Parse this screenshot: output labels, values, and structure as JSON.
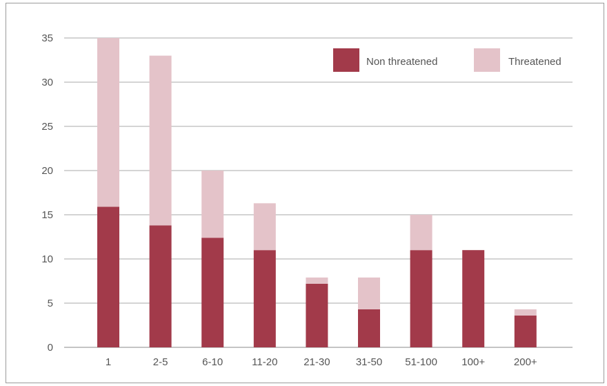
{
  "chart_data": {
    "type": "bar",
    "stacked": true,
    "categories": [
      "1",
      "2-5",
      "6-10",
      "11-20",
      "21-30",
      "31-50",
      "51-100",
      "100+",
      "200+"
    ],
    "series": [
      {
        "name": "Non threatened",
        "values": [
          15.9,
          13.8,
          12.4,
          11.0,
          7.2,
          4.3,
          11.0,
          11.0,
          3.6
        ],
        "color": "#a23a4a"
      },
      {
        "name": "Threatened",
        "values": [
          19.1,
          19.2,
          7.6,
          5.3,
          0.7,
          3.6,
          4.0,
          0,
          0.7
        ],
        "color": "#e4c3c9"
      }
    ],
    "ylim": [
      0,
      35
    ],
    "yticks": [
      "0",
      "5",
      "10",
      "15",
      "20",
      "25",
      "30",
      "35"
    ],
    "grid": true,
    "legend_position": "top-right",
    "title": "",
    "xlabel": "",
    "ylabel": ""
  }
}
